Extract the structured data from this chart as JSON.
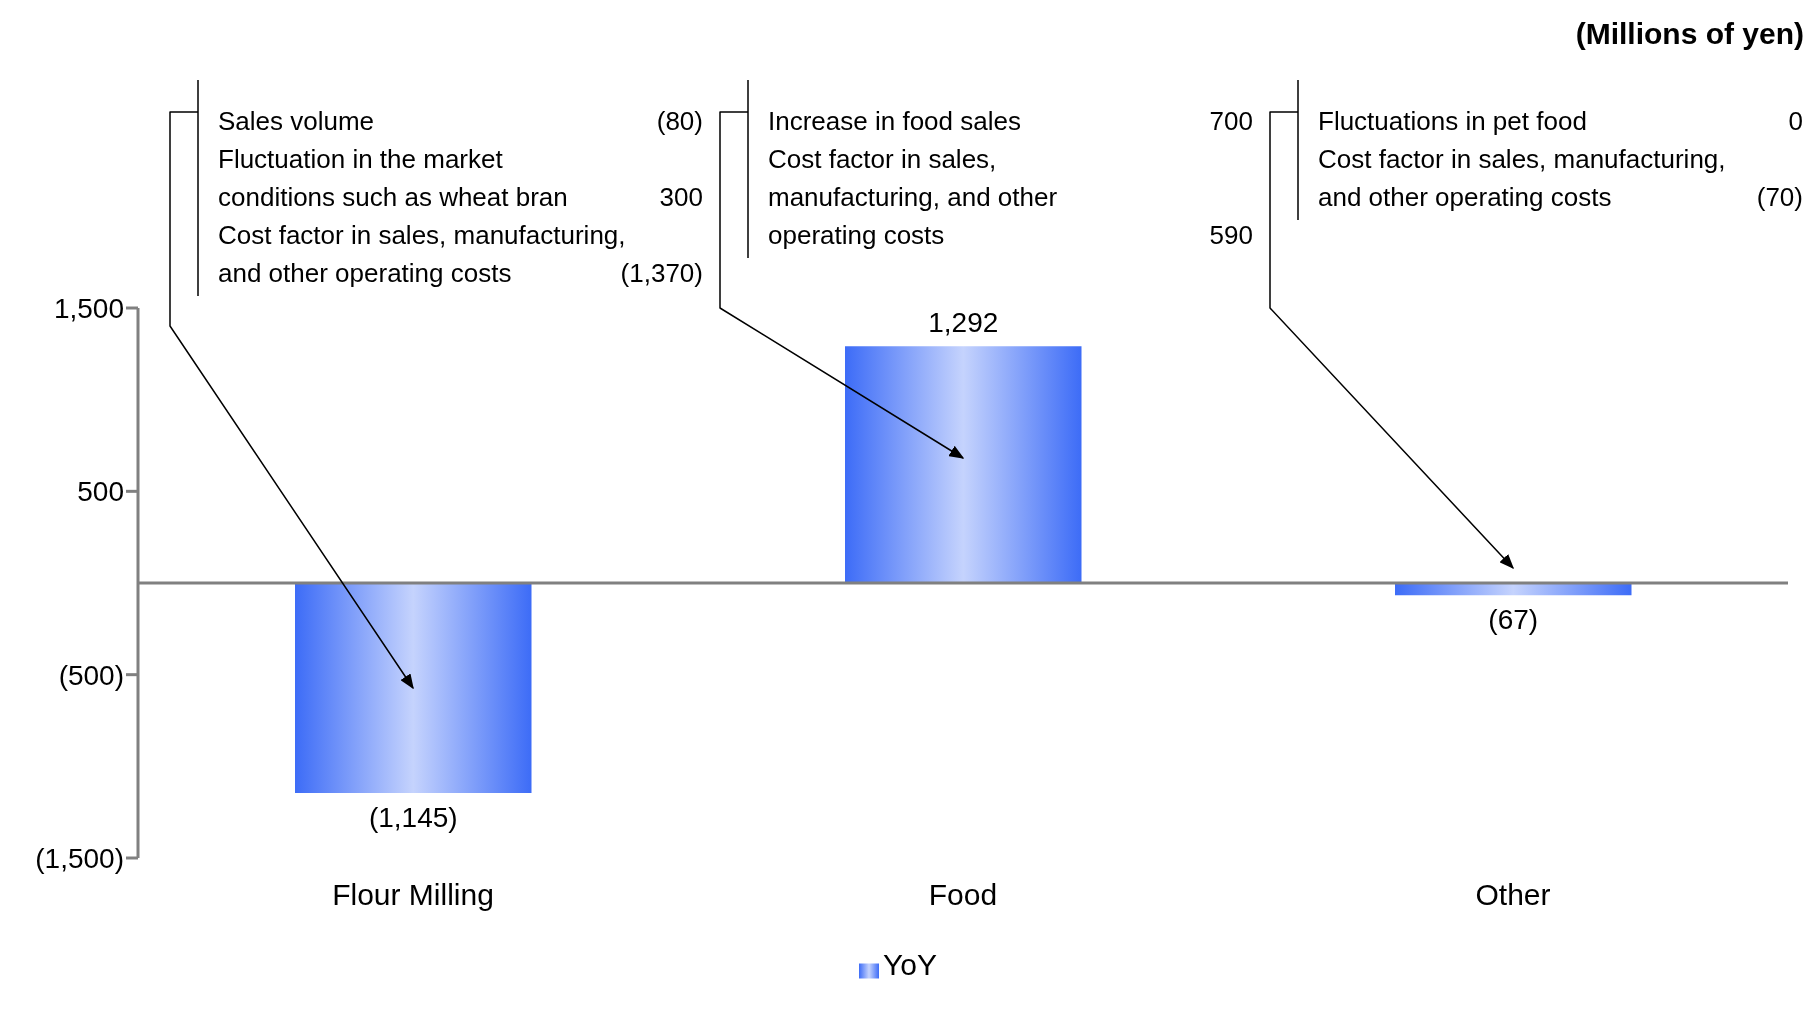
{
  "chart_data": {
    "type": "bar",
    "categories": [
      "Flour Milling",
      "Food",
      "Other"
    ],
    "series": [
      {
        "name": "YoY",
        "color": "#3d6cf7",
        "values": [
          -1145,
          1292,
          -67
        ],
        "value_labels": [
          "(1,145)",
          "1,292",
          "(67)"
        ]
      }
    ],
    "ylim": [
      -1500,
      1500
    ],
    "yticks": [
      {
        "value": -1500,
        "label": "(1,500)"
      },
      {
        "value": -500,
        "label": "(500)"
      },
      {
        "value": 500,
        "label": "500"
      },
      {
        "value": 1500,
        "label": "1,500"
      }
    ],
    "legend": "bottom",
    "annotations": [
      "Sales volume",
      "(80)",
      "Fluctuation in the market",
      "conditions such as wheat bran",
      "300",
      "Cost factor in sales, manufacturing,",
      "and other operating costs",
      "(1,370)",
      "Increase in food sales",
      "700",
      "Cost factor in sales,",
      "manufacturing, and other",
      "operating costs",
      "590",
      "Fluctuations in pet food",
      "0",
      "Cost factor in sales, manufacturing,",
      "and other operating costs",
      "(70)",
      "(Millions of yen)"
    ]
  }
}
